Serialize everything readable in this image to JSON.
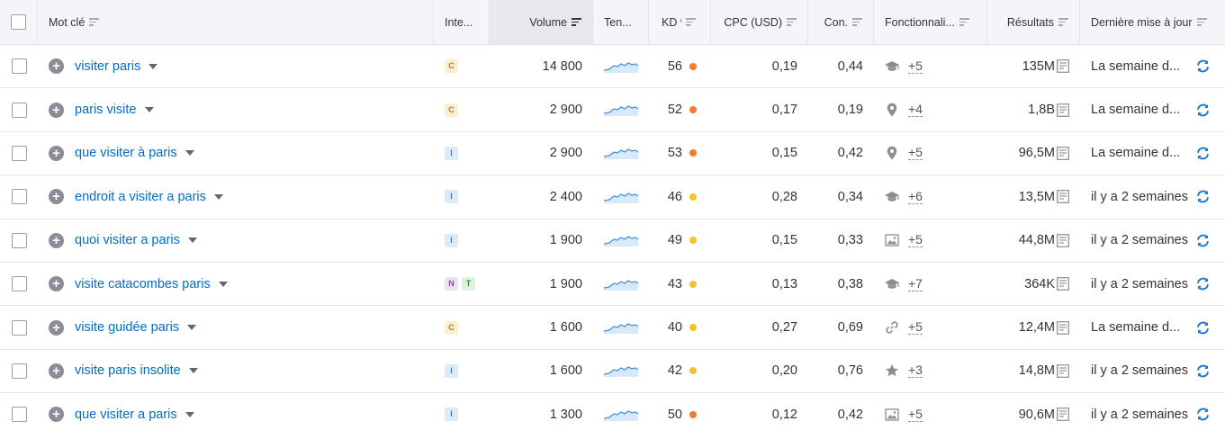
{
  "header": {
    "keyword": "Mot clé",
    "intent": "Inte...",
    "volume": "Volume",
    "trend": "Ten...",
    "kd": "KD %",
    "cpc": "CPC (USD)",
    "competition": "Con.",
    "features": "Fonctionnali...",
    "results": "Résultats",
    "last_update": "Dernière mise à jour"
  },
  "rows": [
    {
      "keyword": "visiter paris",
      "intents": [
        "C"
      ],
      "volume": "14 800",
      "kd": "56",
      "kd_color": "#ef7d2e",
      "cpc": "0,19",
      "com": "0,44",
      "feature_icon": "graduation-cap-icon",
      "feature_count": "+5",
      "results": "135M",
      "update": "La semaine d..."
    },
    {
      "keyword": "paris visite",
      "intents": [
        "C"
      ],
      "volume": "2 900",
      "kd": "52",
      "kd_color": "#ef7d2e",
      "cpc": "0,17",
      "com": "0,19",
      "feature_icon": "map-pin-icon",
      "feature_count": "+4",
      "results": "1,8B",
      "update": "La semaine d..."
    },
    {
      "keyword": "que visiter à paris",
      "intents": [
        "I"
      ],
      "volume": "2 900",
      "kd": "53",
      "kd_color": "#ef7d2e",
      "cpc": "0,15",
      "com": "0,42",
      "feature_icon": "map-pin-icon",
      "feature_count": "+5",
      "results": "96,5M",
      "update": "La semaine d..."
    },
    {
      "keyword": "endroit a visiter a paris",
      "intents": [
        "I"
      ],
      "volume": "2 400",
      "kd": "46",
      "kd_color": "#f6c12a",
      "cpc": "0,28",
      "com": "0,34",
      "feature_icon": "graduation-cap-icon",
      "feature_count": "+6",
      "results": "13,5M",
      "update": "il y a 2 semaines"
    },
    {
      "keyword": "quoi visiter a paris",
      "intents": [
        "I"
      ],
      "volume": "1 900",
      "kd": "49",
      "kd_color": "#f6c12a",
      "cpc": "0,15",
      "com": "0,33",
      "feature_icon": "image-icon",
      "feature_count": "+5",
      "results": "44,8M",
      "update": "il y a 2 semaines"
    },
    {
      "keyword": "visite catacombes paris",
      "intents": [
        "N",
        "T"
      ],
      "volume": "1 900",
      "kd": "43",
      "kd_color": "#f6c12a",
      "cpc": "0,13",
      "com": "0,38",
      "feature_icon": "graduation-cap-icon",
      "feature_count": "+7",
      "results": "364K",
      "update": "il y a 2 semaines"
    },
    {
      "keyword": "visite guidée paris",
      "intents": [
        "C"
      ],
      "volume": "1 600",
      "kd": "40",
      "kd_color": "#f6c12a",
      "cpc": "0,27",
      "com": "0,69",
      "feature_icon": "link-icon",
      "feature_count": "+5",
      "results": "12,4M",
      "update": "La semaine d..."
    },
    {
      "keyword": "visite paris insolite",
      "intents": [
        "I"
      ],
      "volume": "1 600",
      "kd": "42",
      "kd_color": "#f6c12a",
      "cpc": "0,20",
      "com": "0,76",
      "feature_icon": "star-icon",
      "feature_count": "+3",
      "results": "14,8M",
      "update": "il y a 2 semaines"
    },
    {
      "keyword": "que visiter a paris",
      "intents": [
        "I"
      ],
      "volume": "1 300",
      "kd": "50",
      "kd_color": "#ef7d2e",
      "cpc": "0,12",
      "com": "0,42",
      "feature_icon": "image-icon",
      "feature_count": "+5",
      "results": "90,6M",
      "update": "il y a 2 semaines"
    }
  ]
}
